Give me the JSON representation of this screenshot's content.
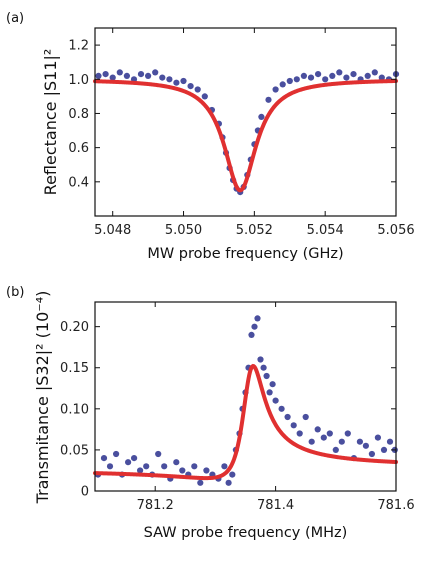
{
  "chart_data": [
    {
      "type": "scatter",
      "panel_label": "(a)",
      "xlabel": "MW probe frequency (GHz)",
      "ylabel": "Reflectance |S11|²",
      "xlim": [
        5.0475,
        5.056
      ],
      "ylim": [
        0.2,
        1.3
      ],
      "xticks": [
        5.048,
        5.05,
        5.052,
        5.054,
        5.056
      ],
      "xtick_labels": [
        "5.048",
        "5.050",
        "5.052",
        "5.054",
        "5.056"
      ],
      "yticks": [
        0.4,
        0.6,
        0.8,
        1.0,
        1.2
      ],
      "ytick_labels": [
        "0.4",
        "0.6",
        "0.8",
        "1.0",
        "1.2"
      ],
      "grid": false,
      "series": [
        {
          "kind": "points",
          "color": "#4a4f9e",
          "x": [
            5.0476,
            5.0478,
            5.048,
            5.0482,
            5.0484,
            5.0486,
            5.0488,
            5.049,
            5.0492,
            5.0494,
            5.0496,
            5.0498,
            5.05,
            5.0502,
            5.0504,
            5.0506,
            5.0508,
            5.051,
            5.0511,
            5.0512,
            5.0513,
            5.0514,
            5.0515,
            5.0516,
            5.0517,
            5.0518,
            5.0519,
            5.052,
            5.0521,
            5.0522,
            5.0524,
            5.0526,
            5.0528,
            5.053,
            5.0532,
            5.0534,
            5.0536,
            5.0538,
            5.054,
            5.0542,
            5.0544,
            5.0546,
            5.0548,
            5.055,
            5.0552,
            5.0554,
            5.0556,
            5.0558,
            5.056
          ],
          "y": [
            1.02,
            1.03,
            1.01,
            1.04,
            1.02,
            1.0,
            1.03,
            1.02,
            1.04,
            1.01,
            1.0,
            0.98,
            0.99,
            0.96,
            0.94,
            0.9,
            0.82,
            0.74,
            0.66,
            0.57,
            0.48,
            0.41,
            0.36,
            0.34,
            0.37,
            0.44,
            0.53,
            0.62,
            0.7,
            0.78,
            0.88,
            0.94,
            0.97,
            0.99,
            1.0,
            1.02,
            1.01,
            1.03,
            1.0,
            1.02,
            1.04,
            1.01,
            1.03,
            1.0,
            1.02,
            1.04,
            1.01,
            1.0,
            1.03
          ]
        },
        {
          "kind": "fit",
          "model": "lorentzian-dip",
          "color": "#e03030",
          "params": {
            "baseline": 1.0,
            "center": 5.0516,
            "depth": 0.65,
            "hwhm": 0.00055
          }
        }
      ]
    },
    {
      "type": "scatter",
      "panel_label": "(b)",
      "xlabel": "SAW probe frequency (MHz)",
      "ylabel": "Transmitance |S32|² (10⁻⁴)",
      "xlim": [
        781.1,
        781.6
      ],
      "ylim": [
        0,
        0.23
      ],
      "xticks": [
        781.2,
        781.4,
        781.6
      ],
      "xtick_labels": [
        "781.2",
        "781.4",
        "781.6"
      ],
      "yticks": [
        0,
        0.05,
        0.1,
        0.15,
        0.2
      ],
      "ytick_labels": [
        "0",
        "0.05",
        "0.10",
        "0.15",
        "0.20"
      ],
      "grid": false,
      "series": [
        {
          "kind": "points",
          "color": "#4a4f9e",
          "x": [
            781.105,
            781.115,
            781.125,
            781.135,
            781.145,
            781.155,
            781.165,
            781.175,
            781.185,
            781.195,
            781.205,
            781.215,
            781.225,
            781.235,
            781.245,
            781.255,
            781.265,
            781.275,
            781.285,
            781.295,
            781.305,
            781.315,
            781.322,
            781.328,
            781.334,
            781.34,
            781.345,
            781.35,
            781.355,
            781.36,
            781.365,
            781.37,
            781.375,
            781.38,
            781.385,
            781.39,
            781.395,
            781.4,
            781.41,
            781.42,
            781.43,
            781.44,
            781.45,
            781.46,
            781.47,
            781.48,
            781.49,
            781.5,
            781.51,
            781.52,
            781.53,
            781.54,
            781.55,
            781.56,
            781.57,
            781.58,
            781.59,
            781.598
          ],
          "y": [
            0.02,
            0.04,
            0.03,
            0.045,
            0.02,
            0.035,
            0.04,
            0.025,
            0.03,
            0.02,
            0.045,
            0.03,
            0.015,
            0.035,
            0.025,
            0.02,
            0.03,
            0.01,
            0.025,
            0.02,
            0.015,
            0.03,
            0.01,
            0.02,
            0.05,
            0.07,
            0.1,
            0.12,
            0.15,
            0.19,
            0.2,
            0.21,
            0.16,
            0.15,
            0.14,
            0.12,
            0.13,
            0.11,
            0.1,
            0.09,
            0.08,
            0.07,
            0.09,
            0.06,
            0.075,
            0.065,
            0.07,
            0.05,
            0.06,
            0.07,
            0.04,
            0.06,
            0.055,
            0.045,
            0.065,
            0.05,
            0.06,
            0.05
          ]
        },
        {
          "kind": "fit",
          "model": "fano",
          "color": "#e03030",
          "params": {
            "background": 0.0275,
            "scale": 0.0118,
            "center": 781.356,
            "hwidth": 0.022,
            "q": 3.25
          }
        }
      ]
    }
  ]
}
